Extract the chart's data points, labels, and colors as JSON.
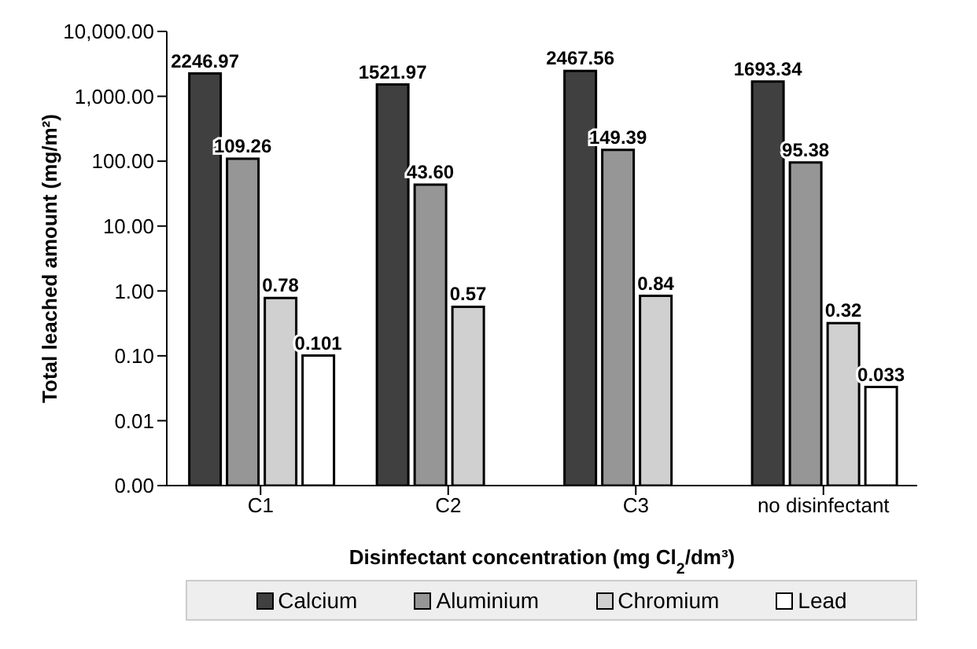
{
  "chart_data": {
    "type": "bar",
    "xlabel": "Disinfectant concentration (mg Cl$_{2}$/dm³)",
    "ylabel": "Total leached amount (mg/m²)",
    "categories": [
      "C1",
      "C2",
      "C3",
      "no disinfectant"
    ],
    "log": true,
    "ylim": [
      0.001,
      10000
    ],
    "yticks": [
      {
        "value": 0.001,
        "label": "0.00"
      },
      {
        "value": 0.01,
        "label": "0.01"
      },
      {
        "value": 0.1,
        "label": "0.10"
      },
      {
        "value": 1,
        "label": "1.00"
      },
      {
        "value": 10,
        "label": "10.00"
      },
      {
        "value": 100,
        "label": "100.00"
      },
      {
        "value": 1000,
        "label": "1,000.00"
      },
      {
        "value": 10000,
        "label": "10,000.00"
      }
    ],
    "legend": "bottom",
    "series": [
      {
        "name": "Calcium",
        "color": "#404040",
        "values": [
          2246.97,
          1521.97,
          2467.56,
          1693.34
        ],
        "value_labels": [
          "2246.97",
          "1521.97",
          "2467.56",
          "1693.34"
        ]
      },
      {
        "name": "Aluminium",
        "color": "#969696",
        "values": [
          109.26,
          43.6,
          149.39,
          95.38
        ],
        "value_labels": [
          "109.26",
          "43.60",
          "149.39",
          "95.38"
        ]
      },
      {
        "name": "Chromium",
        "color": "#d0d0d0",
        "values": [
          0.78,
          0.57,
          0.84,
          0.32
        ],
        "value_labels": [
          "0.78",
          "0.57",
          "0.84",
          "0.32"
        ]
      },
      {
        "name": "Lead",
        "color": "#ffffff",
        "values": [
          0.101,
          null,
          null,
          0.033
        ],
        "value_labels": [
          "0.101",
          null,
          null,
          "0.033"
        ]
      }
    ]
  }
}
